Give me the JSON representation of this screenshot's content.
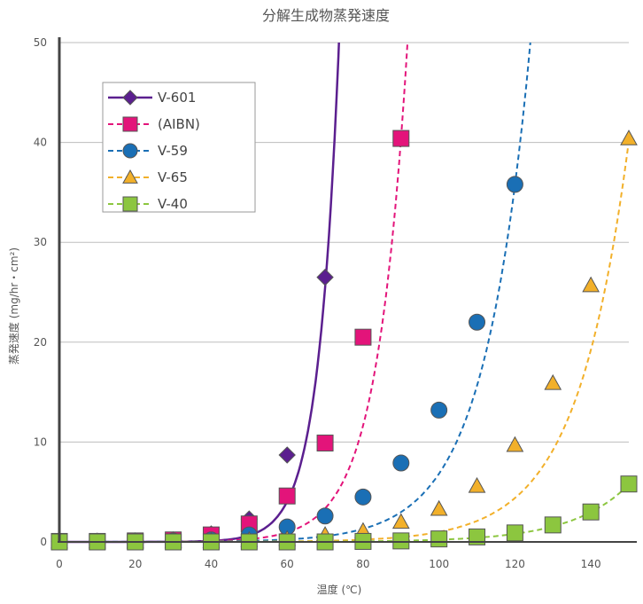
{
  "chart_data": {
    "type": "scatter",
    "title": "分解生成物蒸発速度",
    "xlabel": "温度 (℃)",
    "ylabel": "蒸発速度 (mg/hr・cm²)",
    "xlim": [
      0,
      150
    ],
    "ylim": [
      0,
      50
    ],
    "xticks": [
      "0",
      "20",
      "40",
      "60",
      "80",
      "100",
      "120",
      "140"
    ],
    "yticks": [
      "0",
      "10",
      "20",
      "30",
      "40",
      "50"
    ],
    "grid": "horizontal",
    "legend_position": "top-left",
    "series": [
      {
        "name": "V-601",
        "color": "#5b1f8f",
        "marker": "diamond",
        "line": "solid",
        "x": [
          0,
          10,
          20,
          30,
          40,
          50,
          60,
          70
        ],
        "y": [
          0.05,
          0.05,
          0.1,
          0.2,
          0.8,
          2.3,
          8.7,
          26.5
        ],
        "fit": {
          "a": 6.5e-05,
          "b": 0.184
        }
      },
      {
        "name": "(AIBN)",
        "color": "#e3147a",
        "marker": "square",
        "line": "dashed",
        "x": [
          0,
          10,
          20,
          30,
          40,
          50,
          60,
          70,
          80,
          90
        ],
        "y": [
          0.05,
          0.05,
          0.1,
          0.2,
          0.7,
          1.8,
          4.6,
          9.9,
          20.5,
          40.4
        ],
        "fit": {
          "a": 0.00055,
          "b": 0.1245
        }
      },
      {
        "name": "V-59",
        "color": "#1a6fb5",
        "marker": "circle",
        "line": "dashed",
        "x": [
          0,
          10,
          20,
          30,
          40,
          50,
          60,
          70,
          80,
          90,
          100,
          110,
          120
        ],
        "y": [
          0.05,
          0.05,
          0.05,
          0.1,
          0.2,
          0.7,
          1.5,
          2.6,
          4.5,
          7.9,
          13.2,
          22.0,
          35.8
        ],
        "fit": {
          "a": 0.00175,
          "b": 0.0827
        }
      },
      {
        "name": "V-65",
        "color": "#f2b02a",
        "marker": "triangle",
        "line": "dashed",
        "x": [
          0,
          10,
          20,
          30,
          40,
          50,
          60,
          70,
          80,
          90,
          100,
          110,
          120,
          130,
          140,
          150
        ],
        "y": [
          0.05,
          0.05,
          0.05,
          0.05,
          0.1,
          0.2,
          0.3,
          0.7,
          1.1,
          2.0,
          3.3,
          5.6,
          9.7,
          15.9,
          25.7,
          40.4
        ],
        "fit": {
          "a": 0.000626,
          "b": 0.0738
        }
      },
      {
        "name": "V-40",
        "color": "#8cc63f",
        "marker": "square",
        "line": "dashed",
        "x": [
          0,
          10,
          20,
          30,
          40,
          50,
          60,
          70,
          80,
          90,
          100,
          110,
          120,
          130,
          140,
          150
        ],
        "y": [
          0.0,
          0.0,
          0.0,
          0.0,
          0.0,
          0.0,
          0.0,
          0.0,
          0.05,
          0.1,
          0.3,
          0.5,
          0.9,
          1.7,
          3.0,
          5.8
        ],
        "fit": {
          "a": 0.000315,
          "b": 0.0654
        }
      }
    ]
  }
}
